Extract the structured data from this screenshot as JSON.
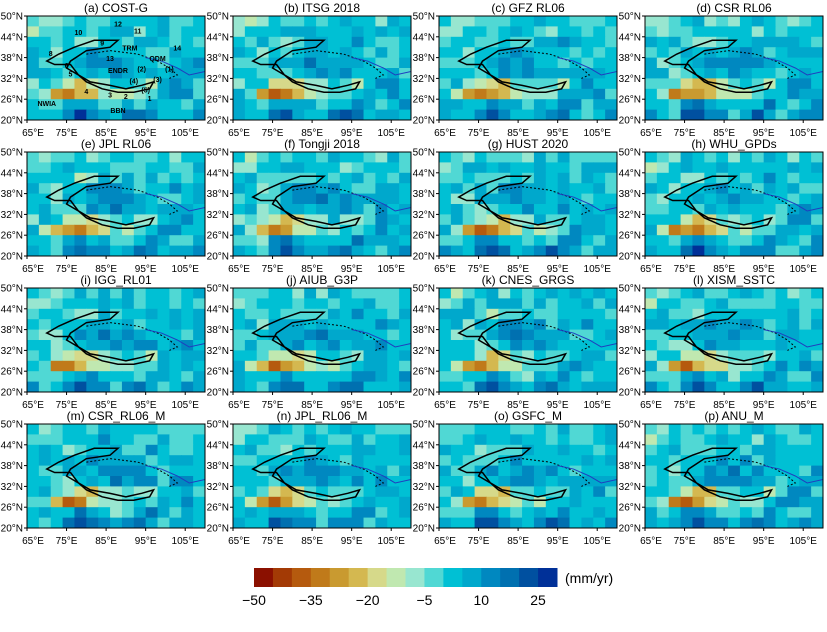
{
  "panels": [
    {
      "title": "(a) COST-G"
    },
    {
      "title": "(b) ITSG 2018"
    },
    {
      "title": "(c) GFZ RL06"
    },
    {
      "title": "(d) CSR RL06"
    },
    {
      "title": "(e) JPL RL06"
    },
    {
      "title": "(f) Tongji 2018"
    },
    {
      "title": "(g) HUST 2020"
    },
    {
      "title": "(h) WHU_GPDs"
    },
    {
      "title": "(i) IGG_RL01"
    },
    {
      "title": "(j) AIUB_G3P"
    },
    {
      "title": "(k) CNES_GRGS"
    },
    {
      "title": "(l) XISM_SSTC"
    },
    {
      "title": "(m) CSR_RL06_M"
    },
    {
      "title": "(n) JPL_RL06_M"
    },
    {
      "title": "(o) GSFC_M"
    },
    {
      "title": "(p) ANU_M"
    }
  ],
  "axes": {
    "lat_ticks": [
      "50°N",
      "44°N",
      "38°N",
      "32°N",
      "26°N",
      "20°N"
    ],
    "lon_ticks": [
      "65°E",
      "75°E",
      "85°E",
      "95°E",
      "105°E"
    ]
  },
  "annotations_panel_a": [
    "12",
    "11",
    "10",
    "9",
    "TRM",
    "8",
    "13",
    "14",
    "QDM",
    "6",
    "5",
    "ENDR",
    "(2)",
    "(1)",
    "(4)",
    "(3)",
    "(5)",
    "4",
    "3",
    "2",
    "1",
    "NWIA",
    "BBN"
  ],
  "chart_data": {
    "type": "heatmap",
    "lon_range": [
      65,
      110
    ],
    "lat_range": [
      20,
      50
    ],
    "grid_step_deg": 3,
    "base_field_rows_north_to_south": [
      [
        -5,
        -10,
        -5,
        0,
        0,
        -5,
        0,
        -5,
        0,
        0,
        0,
        0,
        -5,
        0,
        0
      ],
      [
        -10,
        -5,
        0,
        0,
        0,
        0,
        5,
        0,
        0,
        -5,
        0,
        0,
        0,
        0,
        0
      ],
      [
        0,
        0,
        0,
        -5,
        -10,
        -5,
        0,
        0,
        0,
        0,
        5,
        0,
        0,
        -5,
        0
      ],
      [
        0,
        0,
        -5,
        0,
        0,
        5,
        5,
        5,
        5,
        0,
        0,
        0,
        5,
        0,
        0
      ],
      [
        0,
        -5,
        -5,
        0,
        5,
        5,
        10,
        10,
        5,
        5,
        0,
        0,
        0,
        0,
        5
      ],
      [
        0,
        0,
        -5,
        -5,
        0,
        5,
        5,
        10,
        5,
        5,
        5,
        0,
        5,
        5,
        0
      ],
      [
        -5,
        0,
        -5,
        -15,
        -20,
        -20,
        -10,
        -5,
        0,
        -5,
        -10,
        0,
        5,
        5,
        0
      ],
      [
        0,
        -10,
        -30,
        -35,
        -30,
        -20,
        -15,
        -10,
        -10,
        -5,
        0,
        5,
        5,
        5,
        0
      ],
      [
        0,
        0,
        -5,
        5,
        10,
        5,
        0,
        -5,
        0,
        0,
        10,
        5,
        0,
        0,
        5
      ],
      [
        5,
        0,
        0,
        15,
        20,
        10,
        5,
        0,
        10,
        15,
        10,
        0,
        0,
        5,
        5
      ]
    ],
    "colorbar": {
      "min": -50,
      "max": 30,
      "step": 5,
      "tick_labels": [
        "−50",
        "−35",
        "−20",
        "−5",
        "10",
        "25"
      ],
      "unit": "(mm/yr)",
      "colors": [
        "#8b1000",
        "#a33a05",
        "#b55a0e",
        "#c07a1a",
        "#c99a30",
        "#d4b850",
        "#d6d98a",
        "#c0e8b0",
        "#98e6d0",
        "#50d8d4",
        "#00c0d4",
        "#00a8cc",
        "#0088c0",
        "#0070b0",
        "#0050a0",
        "#003098"
      ]
    }
  }
}
